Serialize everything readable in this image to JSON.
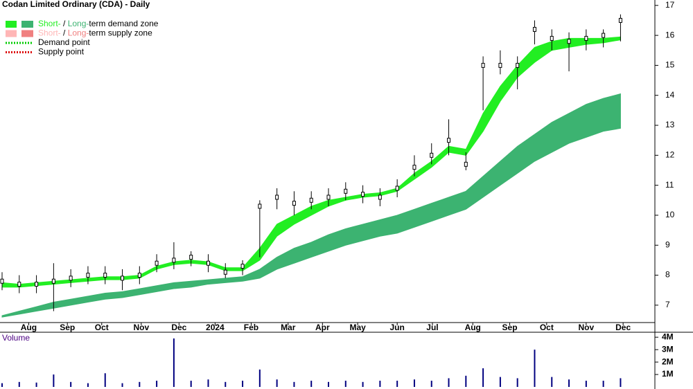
{
  "chart_data": {
    "type": "candlestick",
    "title": "Codan Limited Ordinary (CDA) - Daily",
    "legend": [
      {
        "short": "Short-",
        "sep": " / ",
        "long": "Long-",
        "text": "term demand zone",
        "short_color": "#22ee22",
        "long_color": "#3cb371"
      },
      {
        "short": "Short-",
        "sep": " / ",
        "long": "Long-",
        "text": "term supply zone",
        "short_color": "#ffb6b6",
        "long_color": "#f08080"
      },
      {
        "text": "Demand point",
        "color": "#00cc00"
      },
      {
        "text": "Supply point",
        "color": "#dd0000"
      }
    ],
    "x": [
      0,
      2,
      4,
      6,
      8,
      10,
      12,
      14,
      16,
      18,
      20,
      22,
      24,
      26,
      28,
      30,
      32,
      34,
      36,
      38,
      40,
      42,
      44,
      46,
      48,
      50,
      52,
      54,
      56,
      58,
      60,
      62,
      64,
      66,
      68,
      70,
      72
    ],
    "close": [
      7.8,
      7.7,
      7.7,
      7.8,
      7.9,
      8.0,
      8.0,
      7.9,
      8.0,
      8.4,
      8.5,
      8.6,
      8.4,
      8.1,
      8.3,
      10.3,
      10.6,
      10.4,
      10.5,
      10.6,
      10.8,
      10.7,
      10.6,
      10.9,
      11.6,
      12.0,
      12.5,
      11.7,
      15.0,
      15.0,
      15.0,
      16.2,
      15.9,
      15.8,
      15.9,
      16.0,
      16.5
    ],
    "high": [
      8.1,
      8.0,
      8.0,
      8.4,
      8.2,
      8.3,
      8.3,
      8.2,
      8.3,
      8.7,
      9.1,
      8.8,
      8.7,
      8.4,
      8.5,
      10.5,
      10.9,
      10.8,
      10.8,
      10.9,
      11.1,
      11.0,
      10.9,
      11.2,
      12.0,
      12.4,
      13.2,
      12.1,
      15.3,
      15.5,
      15.3,
      16.5,
      16.2,
      16.1,
      16.2,
      16.2,
      16.7
    ],
    "low": [
      7.5,
      7.4,
      7.4,
      6.8,
      7.6,
      7.7,
      7.7,
      7.5,
      7.7,
      8.1,
      8.2,
      8.3,
      8.1,
      7.9,
      8.0,
      8.6,
      10.2,
      10.0,
      10.2,
      10.3,
      10.5,
      10.4,
      10.3,
      10.6,
      11.3,
      11.7,
      12.0,
      11.5,
      13.5,
      14.7,
      14.2,
      15.7,
      15.5,
      14.8,
      15.5,
      15.6,
      15.8
    ],
    "short_zone": {
      "color": "#22ee22",
      "upper": [
        7.75,
        7.7,
        7.75,
        7.8,
        7.85,
        7.9,
        7.95,
        7.95,
        8.0,
        8.3,
        8.45,
        8.5,
        8.45,
        8.25,
        8.25,
        8.9,
        9.7,
        10.0,
        10.3,
        10.5,
        10.6,
        10.7,
        10.75,
        10.9,
        11.4,
        11.8,
        12.3,
        12.2,
        13.4,
        14.3,
        15.0,
        15.6,
        15.8,
        15.9,
        15.9,
        15.9,
        15.95
      ],
      "lower": [
        7.6,
        7.6,
        7.65,
        7.7,
        7.75,
        7.8,
        7.85,
        7.85,
        7.9,
        8.2,
        8.35,
        8.4,
        8.35,
        8.15,
        8.15,
        8.5,
        9.3,
        9.7,
        10.0,
        10.3,
        10.5,
        10.6,
        10.65,
        10.8,
        11.2,
        11.6,
        12.1,
        12.0,
        12.8,
        13.8,
        14.6,
        15.1,
        15.5,
        15.6,
        15.7,
        15.75,
        15.85
      ]
    },
    "long_zone": {
      "color": "#3cb371",
      "upper": [
        6.65,
        6.8,
        6.95,
        7.1,
        7.2,
        7.3,
        7.4,
        7.45,
        7.55,
        7.65,
        7.75,
        7.8,
        7.85,
        7.9,
        7.95,
        8.2,
        8.6,
        8.9,
        9.1,
        9.35,
        9.55,
        9.7,
        9.85,
        10.0,
        10.2,
        10.4,
        10.6,
        10.8,
        11.3,
        11.8,
        12.3,
        12.7,
        13.1,
        13.4,
        13.7,
        13.9,
        14.05
      ],
      "lower": [
        6.6,
        6.7,
        6.8,
        6.9,
        7.0,
        7.1,
        7.2,
        7.25,
        7.35,
        7.45,
        7.55,
        7.6,
        7.7,
        7.75,
        7.8,
        7.9,
        8.2,
        8.4,
        8.6,
        8.8,
        9.0,
        9.15,
        9.3,
        9.4,
        9.6,
        9.8,
        10.0,
        10.2,
        10.6,
        11.0,
        11.4,
        11.8,
        12.1,
        12.4,
        12.6,
        12.8,
        12.9
      ]
    },
    "candle_color": "#000000",
    "xlim": [
      0,
      76
    ],
    "ylim": [
      6.42,
      17.18
    ],
    "yticks": [
      7,
      8,
      9,
      10,
      11,
      12,
      13,
      14,
      15,
      16,
      17
    ],
    "xticks": [
      {
        "value": 3.1,
        "label": "Aug"
      },
      {
        "value": 7.6,
        "label": "Sep"
      },
      {
        "value": 11.6,
        "label": "Oct"
      },
      {
        "value": 16.2,
        "label": "Nov"
      },
      {
        "value": 20.6,
        "label": "Dec"
      },
      {
        "value": 24.8,
        "label": "2024"
      },
      {
        "value": 29.0,
        "label": "Feb"
      },
      {
        "value": 33.3,
        "label": "Mar"
      },
      {
        "value": 37.3,
        "label": "Apr"
      },
      {
        "value": 41.4,
        "label": "May"
      },
      {
        "value": 46.0,
        "label": "Jun"
      },
      {
        "value": 50.1,
        "label": "Jul"
      },
      {
        "value": 54.8,
        "label": "Aug"
      },
      {
        "value": 59.1,
        "label": "Sep"
      },
      {
        "value": 63.4,
        "label": "Oct"
      },
      {
        "value": 68.0,
        "label": "Nov"
      },
      {
        "value": 72.3,
        "label": "Dec"
      }
    ],
    "volume": {
      "label": "Volume",
      "color": "#000080",
      "values": [
        300000,
        400000,
        350000,
        1000000,
        400000,
        300000,
        1100000,
        300000,
        400000,
        500000,
        3900000,
        500000,
        600000,
        400000,
        500000,
        1400000,
        600000,
        400000,
        500000,
        400000,
        500000,
        400000,
        500000,
        500000,
        600000,
        500000,
        700000,
        900000,
        1500000,
        800000,
        700000,
        3000000,
        800000,
        600000,
        500000,
        500000,
        700000
      ],
      "ylim": [
        0,
        4400000
      ],
      "yticks": [
        {
          "value": 1000000,
          "label": "1M"
        },
        {
          "value": 2000000,
          "label": "2M"
        },
        {
          "value": 3000000,
          "label": "3M"
        },
        {
          "value": 4000000,
          "label": "4M"
        }
      ]
    }
  }
}
